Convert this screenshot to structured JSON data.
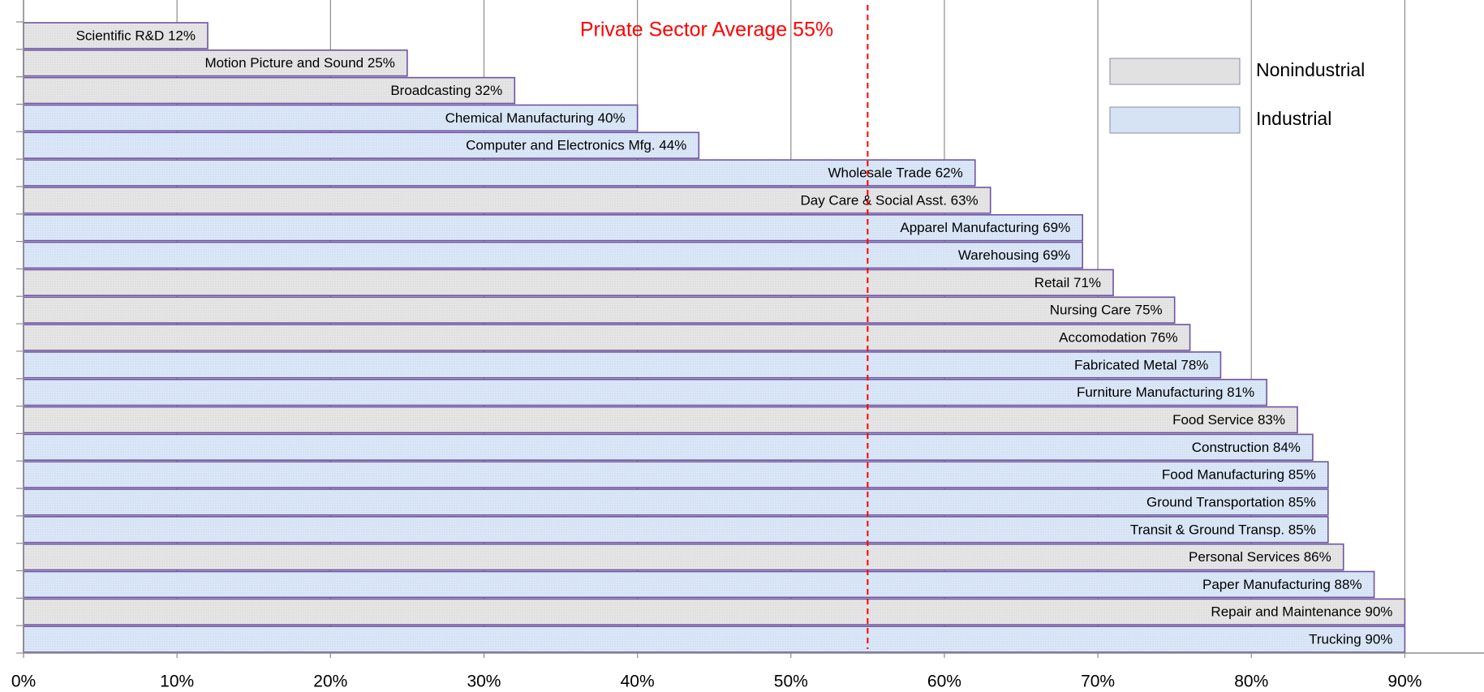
{
  "chart_data": {
    "type": "barh",
    "categories": [
      "Scientific R&D 12%",
      "Motion Picture and Sound 25%",
      "Broadcasting 32%",
      "Chemical Manufacturing 40%",
      "Computer and Electronics Mfg. 44%",
      "Wholesale Trade 62%",
      "Day Care & Social Asst. 63%",
      "Apparel Manufacturing 69%",
      "Warehousing 69%",
      "Retail 71%",
      "Nursing Care 75%",
      "Accomodation 76%",
      "Fabricated Metal 78%",
      "Furniture Manufacturing 81%",
      "Food Service 83%",
      "Construction 84%",
      "Food Manufacturing 85%",
      "Ground Transportation 85%",
      "Transit & Ground Transp. 85%",
      "Personal Services 86%",
      "Paper Manufacturing 88%",
      "Repair and Maintenance 90%",
      "Trucking 90%"
    ],
    "series": [
      {
        "name": "Nonindustrial",
        "color": "#e1e1e1",
        "values": [
          12,
          25,
          32,
          null,
          null,
          null,
          63,
          null,
          null,
          71,
          75,
          76,
          null,
          null,
          83,
          null,
          null,
          null,
          null,
          86,
          null,
          90,
          null
        ]
      },
      {
        "name": "Industrial",
        "color": "#d5e3f5",
        "values": [
          null,
          null,
          null,
          40,
          44,
          62,
          null,
          69,
          69,
          null,
          null,
          null,
          78,
          81,
          null,
          84,
          85,
          85,
          85,
          null,
          88,
          null,
          90
        ]
      }
    ],
    "edgecolor": "#6e55a0",
    "reference_line": {
      "value": 55,
      "label": "Private Sector Average 55%",
      "color": "#ff0000"
    },
    "xlim": [
      0,
      95
    ],
    "xticks": [
      {
        "value": 0,
        "label": "0%"
      },
      {
        "value": 10,
        "label": "10%"
      },
      {
        "value": 20,
        "label": "20%"
      },
      {
        "value": 30,
        "label": "30%"
      },
      {
        "value": 40,
        "label": "40%"
      },
      {
        "value": 50,
        "label": "50%"
      },
      {
        "value": 60,
        "label": "60%"
      },
      {
        "value": 70,
        "label": "70%"
      },
      {
        "value": 80,
        "label": "80%"
      },
      {
        "value": 90,
        "label": "90%"
      }
    ],
    "grid": true,
    "legend": "upper right"
  }
}
